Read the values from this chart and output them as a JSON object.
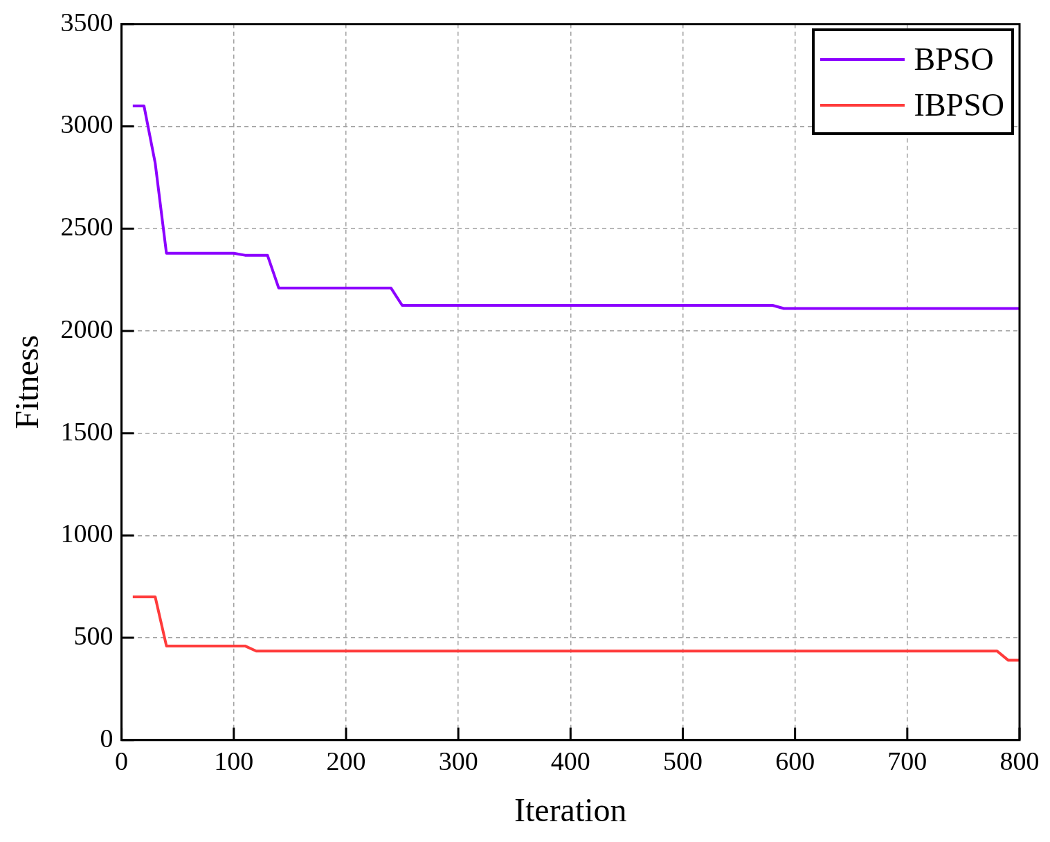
{
  "chart_data": {
    "type": "line",
    "xlabel": "Iteration",
    "ylabel": "Fitness",
    "xlim": [
      0,
      800
    ],
    "xticks": [
      0,
      100,
      200,
      300,
      400,
      500,
      600,
      700,
      800
    ],
    "ylim": [
      0,
      3500
    ],
    "yticks": [
      0,
      500,
      1000,
      1500,
      2000,
      2500,
      3000,
      3500
    ],
    "grid": true,
    "legend": "top right",
    "line_style": "solid",
    "marker": "none",
    "series": [
      {
        "name": "BPSO",
        "color": "#8c00ff",
        "x": [
          10,
          20,
          30,
          40,
          100,
          110,
          130,
          140,
          240,
          250,
          580,
          590,
          800
        ],
        "values": [
          3100,
          3100,
          2820,
          2380,
          2380,
          2370,
          2370,
          2210,
          2210,
          2125,
          2125,
          2110,
          2110
        ]
      },
      {
        "name": "IBPSO",
        "color": "#ff3b3b",
        "x": [
          10,
          30,
          40,
          110,
          120,
          780,
          790,
          800
        ],
        "values": [
          700,
          700,
          460,
          460,
          435,
          435,
          390,
          390
        ]
      }
    ]
  }
}
